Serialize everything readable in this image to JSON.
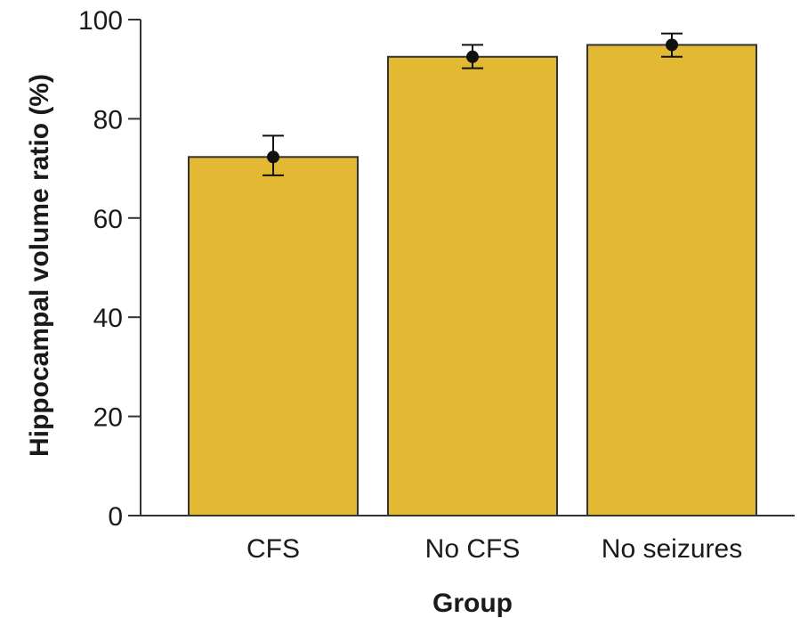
{
  "chart_data": {
    "type": "bar",
    "title": "",
    "xlabel": "Group",
    "ylabel": "Hippocampal volume ratio (%)",
    "categories": [
      "CFS",
      "No CFS",
      "No seizures"
    ],
    "values": [
      72.3,
      92.5,
      94.9
    ],
    "error_bars": {
      "lower": [
        68.6,
        90.2,
        92.5
      ],
      "upper": [
        76.6,
        94.9,
        97.2
      ]
    },
    "ylim": [
      0,
      100
    ],
    "yticks": [
      0,
      20,
      40,
      60,
      80,
      100
    ],
    "grid": false,
    "legend": "none",
    "colors": {
      "bar_fill": "#E3B934",
      "bar_stroke": "#333333",
      "axis": "#333333",
      "marker": "#111111"
    }
  }
}
